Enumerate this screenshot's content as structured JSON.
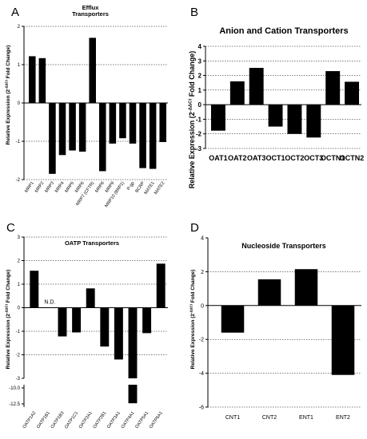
{
  "chart_data": [
    {
      "type": "bar",
      "panel": "A",
      "title": "Efflux\nTransporters",
      "ylabel": "Relative Expression (2^-ΔΔCt Fold Change)",
      "ylim": [
        -2,
        2
      ],
      "yticks": [
        -2,
        -1,
        0,
        1,
        2
      ],
      "categories": [
        "MRP1",
        "MRP2",
        "MRP3",
        "MRP4",
        "MRP5",
        "MRP6",
        "MRP7 (CFTR)",
        "MRP8",
        "MRP9",
        "MRP10 (BRP1)",
        "P-gp",
        "BCRP",
        "MATE1",
        "MATE2"
      ],
      "values": [
        1.22,
        1.17,
        -1.85,
        -1.36,
        -1.24,
        -1.27,
        1.7,
        -1.78,
        -1.06,
        -0.92,
        -1.06,
        -1.7,
        -1.72,
        -1.02
      ],
      "grid": true
    },
    {
      "type": "bar",
      "panel": "B",
      "title": "Anion and Cation Transporters",
      "ylabel": "Relative Expression (2^-ΔΔCt Fold Change)",
      "ylim": [
        -3,
        4
      ],
      "yticks": [
        -3,
        -2,
        -1,
        0,
        1,
        2,
        3,
        4
      ],
      "categories": [
        "OAT1",
        "OAT2",
        "OAT3",
        "OCT1",
        "OCT2",
        "OCT3",
        "OCTN1",
        "OCTN2"
      ],
      "values": [
        -1.78,
        1.6,
        2.52,
        -1.5,
        -2.0,
        -2.25,
        2.3,
        1.57
      ],
      "grid": true
    },
    {
      "type": "bar",
      "panel": "C",
      "title": "OATP Transporters",
      "ylabel": "Relative Expression (2^-ΔΔCt Fold Change)",
      "ylim": [
        -13,
        3
      ],
      "yticks_upper": [
        -3,
        -2,
        -1,
        0,
        1,
        2,
        3
      ],
      "yticks_lower": [
        -10.0,
        -12.5
      ],
      "categories": [
        "OATP1A2",
        "OATP1B1",
        "OATP1B3",
        "OATP1C1",
        "OATP2A1",
        "OATP2B1",
        "OATP3A1",
        "OATP4A1",
        "OATP5A1",
        "OATP6A1"
      ],
      "values": [
        1.57,
        null,
        -1.22,
        -1.05,
        0.82,
        -1.65,
        -2.2,
        -12.4,
        -1.08,
        1.87
      ],
      "annotation": "N.D.",
      "grid": true
    },
    {
      "type": "bar",
      "panel": "D",
      "title": "Nucleoside Transporters",
      "ylabel": "Relative Expression (2^-ΔΔCt Fold Change)",
      "ylim": [
        -6,
        4
      ],
      "yticks": [
        -6,
        -4,
        -2,
        0,
        2,
        4
      ],
      "categories": [
        "CNT1",
        "CNT2",
        "ENT1",
        "ENT2"
      ],
      "values": [
        -1.6,
        1.55,
        2.15,
        -4.1
      ],
      "grid": true
    }
  ]
}
